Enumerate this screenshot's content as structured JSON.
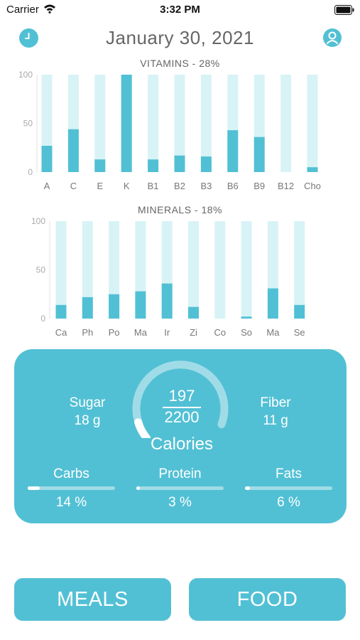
{
  "status_bar": {
    "carrier": "Carrier",
    "time": "3:32 PM"
  },
  "header": {
    "title": "January 30, 2021",
    "left_icon": "clock-icon",
    "right_icon": "user-icon"
  },
  "colors": {
    "accent": "#52c0d4",
    "bar_background": "#d8f3f6",
    "bar_fill": "#52c0d4",
    "axis_text": "#aaaaaa"
  },
  "chart_data": [
    {
      "type": "bar",
      "title": "VITAMINS - 28%",
      "categories": [
        "A",
        "C",
        "E",
        "K",
        "B1",
        "B2",
        "B3",
        "B6",
        "B9",
        "B12",
        "Cho"
      ],
      "values": [
        27,
        44,
        13,
        100,
        13,
        17,
        16,
        43,
        36,
        0,
        5
      ],
      "ylim": [
        0,
        100
      ],
      "yticks": [
        "100",
        "50",
        "0"
      ]
    },
    {
      "type": "bar",
      "title": "MINERALS - 18%",
      "categories": [
        "Ca",
        "Ph",
        "Po",
        "Ma",
        "Ir",
        "Zi",
        "Co",
        "So",
        "Ma",
        "Se"
      ],
      "values": [
        14,
        22,
        25,
        28,
        36,
        12,
        0,
        2,
        31,
        14
      ],
      "ylim": [
        0,
        100
      ],
      "yticks": [
        "100",
        "50",
        "0"
      ]
    }
  ],
  "summary": {
    "sugar_label": "Sugar",
    "sugar_value": "18 g",
    "fiber_label": "Fiber",
    "fiber_value": "11 g",
    "calories_current": "197",
    "calories_goal": "2200",
    "calories_label": "Calories",
    "calories_fraction": 0.09,
    "macros": [
      {
        "name": "Carbs",
        "percent_text": "14 %",
        "fraction": 0.14
      },
      {
        "name": "Protein",
        "percent_text": "3 %",
        "fraction": 0.03
      },
      {
        "name": "Fats",
        "percent_text": "6 %",
        "fraction": 0.06
      }
    ]
  },
  "buttons": {
    "meals": "MEALS",
    "food": "FOOD"
  }
}
